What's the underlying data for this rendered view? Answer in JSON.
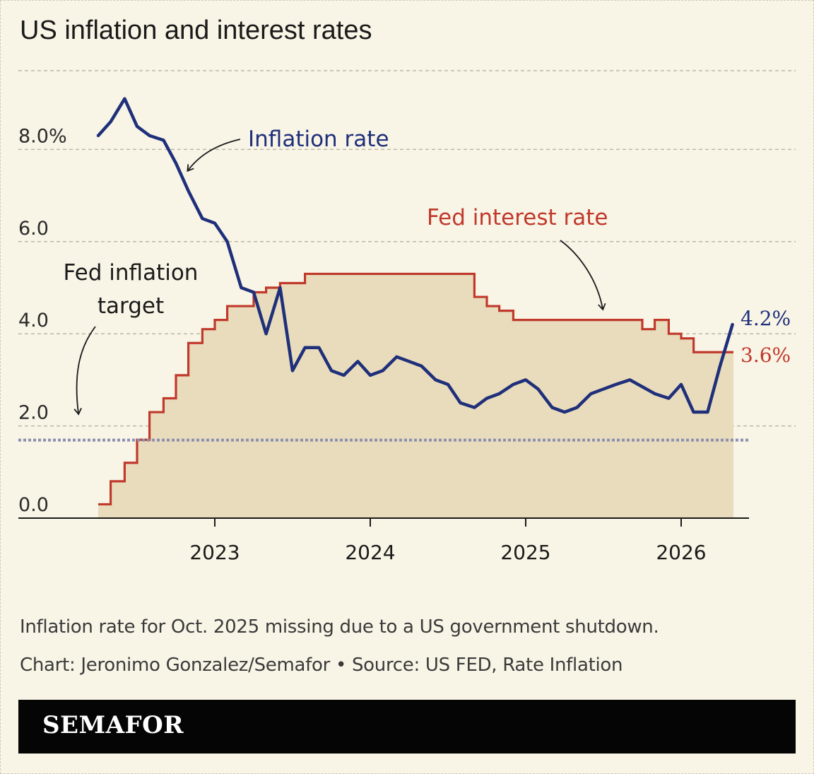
{
  "title": "US inflation and interest rates",
  "note": "Inflation rate for Oct. 2025 missing due to a US government shutdown.",
  "credit": "Chart: Jeronimo Gonzalez/Semafor • Source: US FED, Rate Inflation",
  "brand": "SEMAFOR",
  "colors": {
    "inflation": "#1f2f7a",
    "fed_rate": "#c0392b",
    "area_fill": "#e8dcbc",
    "target": "#8a90b0",
    "background": "#f8f4e6"
  },
  "chart_data": {
    "type": "line",
    "title": "US inflation and interest rates",
    "xlabel": "",
    "ylabel": "",
    "x_ticks": [
      "2023",
      "2024",
      "2025",
      "2026"
    ],
    "y_ticks": [
      "0.0",
      "2.0",
      "4.0",
      "6.0",
      "8.0%"
    ],
    "ylim": [
      0,
      9.5
    ],
    "xlim": [
      2022.0,
      2026.6
    ],
    "grid": true,
    "series": [
      {
        "name": "Inflation rate",
        "style": "line",
        "end_label": "4.2%",
        "x": [
          2022.25,
          2022.33,
          2022.42,
          2022.5,
          2022.58,
          2022.67,
          2022.75,
          2022.83,
          2022.92,
          2023.0,
          2023.08,
          2023.17,
          2023.25,
          2023.33,
          2023.42,
          2023.5,
          2023.58,
          2023.67,
          2023.75,
          2023.83,
          2023.92,
          2024.0,
          2024.08,
          2024.17,
          2024.25,
          2024.33,
          2024.42,
          2024.5,
          2024.58,
          2024.67,
          2024.75,
          2024.83,
          2024.92,
          2025.0,
          2025.08,
          2025.17,
          2025.25,
          2025.33,
          2025.42,
          2025.5,
          2025.58,
          2025.67,
          2025.83,
          2025.92,
          2026.0,
          2026.08,
          2026.17,
          2026.25,
          2026.33
        ],
        "values": [
          8.3,
          8.6,
          9.1,
          8.5,
          8.3,
          8.2,
          7.7,
          7.1,
          6.5,
          6.4,
          6.0,
          5.0,
          4.9,
          4.0,
          5.0,
          3.2,
          3.7,
          3.7,
          3.2,
          3.1,
          3.4,
          3.1,
          3.2,
          3.5,
          3.4,
          3.3,
          3.0,
          2.9,
          2.5,
          2.4,
          2.6,
          2.7,
          2.9,
          3.0,
          2.8,
          2.4,
          2.3,
          2.4,
          2.7,
          2.8,
          2.9,
          3.0,
          2.7,
          2.6,
          2.9,
          2.3,
          2.3,
          3.3,
          4.2
        ]
      },
      {
        "name": "Fed interest rate",
        "style": "step-area",
        "end_label": "3.6%",
        "x": [
          2022.25,
          2022.33,
          2022.42,
          2022.5,
          2022.58,
          2022.67,
          2022.75,
          2022.83,
          2022.92,
          2023.0,
          2023.08,
          2023.17,
          2023.25,
          2023.33,
          2023.42,
          2023.5,
          2023.58,
          2023.67,
          2023.75,
          2023.83,
          2023.92,
          2024.0,
          2024.08,
          2024.17,
          2024.25,
          2024.33,
          2024.42,
          2024.5,
          2024.58,
          2024.67,
          2024.75,
          2024.83,
          2024.92,
          2025.0,
          2025.08,
          2025.17,
          2025.25,
          2025.33,
          2025.42,
          2025.5,
          2025.58,
          2025.67,
          2025.75,
          2025.83,
          2025.92,
          2026.0,
          2026.08,
          2026.17,
          2026.25,
          2026.33
        ],
        "values": [
          0.3,
          0.8,
          1.2,
          1.7,
          2.3,
          2.6,
          3.1,
          3.8,
          4.1,
          4.3,
          4.6,
          4.6,
          4.9,
          5.0,
          5.1,
          5.1,
          5.3,
          5.3,
          5.3,
          5.3,
          5.3,
          5.3,
          5.3,
          5.3,
          5.3,
          5.3,
          5.3,
          5.3,
          5.3,
          4.8,
          4.6,
          4.5,
          4.3,
          4.3,
          4.3,
          4.3,
          4.3,
          4.3,
          4.3,
          4.3,
          4.3,
          4.3,
          4.1,
          4.3,
          4.0,
          3.9,
          3.6,
          3.6,
          3.6,
          3.6
        ]
      }
    ],
    "reference_line": {
      "label": "Fed inflation target",
      "value": 2.0
    },
    "annotations": [
      {
        "text": "Inflation rate",
        "series": "Inflation rate"
      },
      {
        "text": "Fed interest rate",
        "series": "Fed interest rate"
      },
      {
        "text_lines": [
          "Fed inflation",
          "target"
        ],
        "series": "Fed inflation target"
      }
    ]
  }
}
